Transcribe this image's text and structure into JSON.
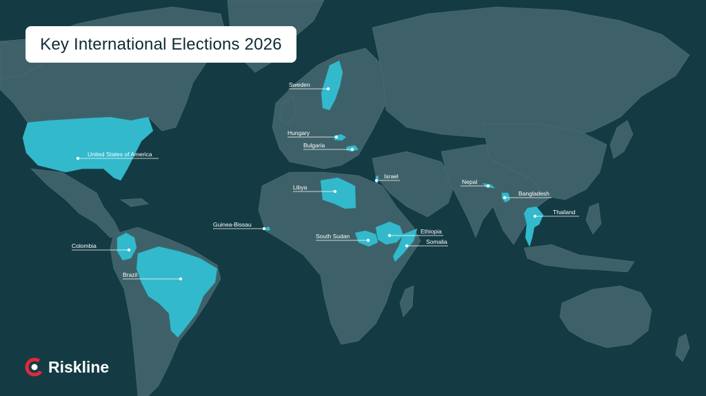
{
  "title": "Key International Elections 2026",
  "brand": {
    "name": "Riskline",
    "colors": {
      "logo_red": "#e3283b",
      "logo_white": "#ffffff"
    }
  },
  "colors": {
    "ocean": "#143b44",
    "land": "#3e6169",
    "highlight": "#33b9cc"
  },
  "countries": [
    "Sweden",
    "Hungary",
    "Bulgaria",
    "United States of America",
    "Israel",
    "Libya",
    "Nepal",
    "Bangladesh",
    "Thailand",
    "Guinea-Bissau",
    "Ethiopia",
    "South Sudan",
    "Somalia",
    "Colombia",
    "Brazil"
  ]
}
